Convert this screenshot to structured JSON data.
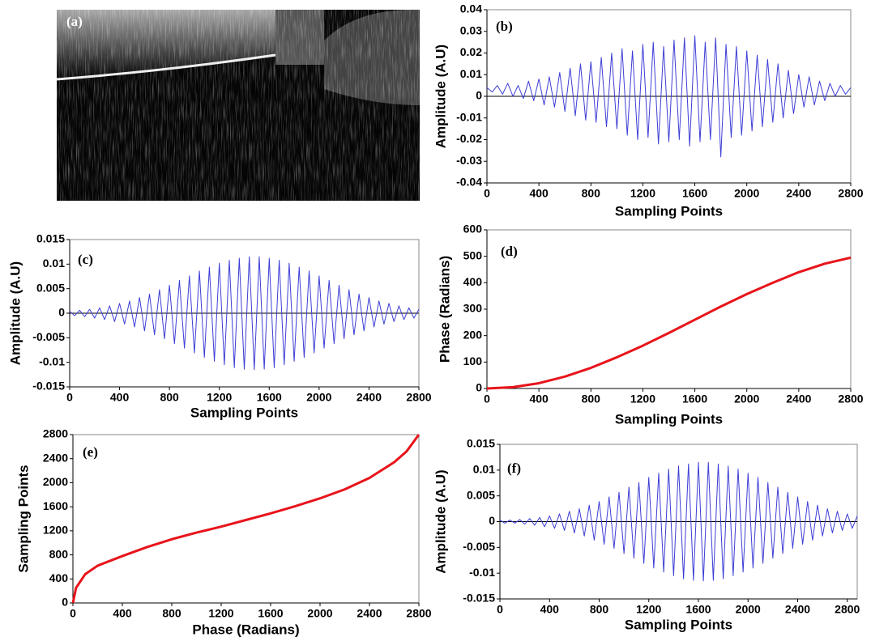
{
  "chart_data": [
    {
      "type": "image",
      "panel_label": "(a)"
    },
    {
      "type": "line",
      "panel_label": "(b)",
      "x_label": "Sampling Points",
      "y_label": "Amplitude (A.U)",
      "xlim": [
        0,
        2800
      ],
      "ylim": [
        -0.04,
        0.04
      ],
      "xticks": [
        0,
        400,
        800,
        1200,
        1600,
        2000,
        2400,
        2800
      ],
      "yticks": [
        -0.04,
        -0.03,
        -0.02,
        -0.01,
        0,
        0.01,
        0.02,
        0.03,
        0.04
      ],
      "zero_line": true,
      "series": [
        {
          "color": "#3d3dd6",
          "x": [
            0,
            40,
            80,
            120,
            160,
            200,
            240,
            280,
            320,
            360,
            400,
            440,
            480,
            520,
            560,
            600,
            640,
            680,
            720,
            760,
            800,
            840,
            880,
            920,
            960,
            1000,
            1040,
            1080,
            1120,
            1160,
            1200,
            1240,
            1280,
            1320,
            1360,
            1400,
            1440,
            1480,
            1520,
            1560,
            1600,
            1640,
            1680,
            1720,
            1760,
            1800,
            1840,
            1880,
            1920,
            1960,
            2000,
            2040,
            2080,
            2120,
            2160,
            2200,
            2240,
            2280,
            2320,
            2360,
            2400,
            2440,
            2480,
            2520,
            2560,
            2600,
            2640,
            2680,
            2720,
            2760,
            2800
          ],
          "values": [
            0.004,
            0.002,
            0.005,
            0.001,
            0.006,
            0,
            0.005,
            -0.001,
            0.007,
            -0.002,
            0.008,
            -0.004,
            0.009,
            -0.005,
            0.011,
            -0.007,
            0.013,
            -0.009,
            0.015,
            -0.011,
            0.016,
            -0.012,
            0.018,
            -0.014,
            0.02,
            -0.015,
            0.022,
            -0.018,
            0.021,
            -0.02,
            0.024,
            -0.019,
            0.025,
            -0.022,
            0.023,
            -0.021,
            0.026,
            -0.02,
            0.027,
            -0.023,
            0.028,
            -0.021,
            0.025,
            -0.02,
            0.027,
            -0.028,
            0.024,
            -0.019,
            0.023,
            -0.018,
            0.021,
            -0.016,
            0.019,
            -0.014,
            0.017,
            -0.012,
            0.015,
            -0.01,
            0.012,
            -0.008,
            0.01,
            -0.005,
            0.009,
            -0.004,
            0.007,
            -0.002,
            0.006,
            0,
            0.005,
            0.001,
            0.004
          ]
        }
      ]
    },
    {
      "type": "line",
      "panel_label": "(c)",
      "x_label": "Sampling Points",
      "y_label": "Amplitude (A.U)",
      "xlim": [
        0,
        2800
      ],
      "ylim": [
        -0.015,
        0.015
      ],
      "xticks": [
        0,
        400,
        800,
        1200,
        1600,
        2000,
        2400,
        2800
      ],
      "yticks": [
        -0.015,
        -0.01,
        -0.005,
        0,
        0.005,
        0.01,
        0.015
      ],
      "zero_line": true,
      "series": [
        {
          "color": "#3d3dd6",
          "x": [
            0,
            40,
            80,
            120,
            160,
            200,
            240,
            280,
            320,
            360,
            400,
            440,
            480,
            520,
            560,
            600,
            640,
            680,
            720,
            760,
            800,
            840,
            880,
            920,
            960,
            1000,
            1040,
            1080,
            1120,
            1160,
            1200,
            1240,
            1280,
            1320,
            1360,
            1400,
            1440,
            1480,
            1520,
            1560,
            1600,
            1640,
            1680,
            1720,
            1760,
            1800,
            1840,
            1880,
            1920,
            1960,
            2000,
            2040,
            2080,
            2120,
            2160,
            2200,
            2240,
            2280,
            2320,
            2360,
            2400,
            2440,
            2480,
            2520,
            2560,
            2600,
            2640,
            2680,
            2720,
            2760,
            2800
          ],
          "values": [
            0.0004,
            -0.0005,
            0.0006,
            -0.0007,
            0.0008,
            -0.001,
            0.0011,
            -0.0013,
            0.0015,
            -0.0017,
            0.002,
            -0.0022,
            0.0025,
            -0.0028,
            0.0032,
            -0.0036,
            0.0039,
            -0.0044,
            0.0048,
            -0.0052,
            0.0057,
            -0.0062,
            0.0067,
            -0.0071,
            0.0076,
            -0.0081,
            0.0086,
            -0.009,
            0.0094,
            -0.0098,
            0.0102,
            -0.0105,
            0.0108,
            -0.0111,
            0.0112,
            -0.0114,
            0.0115,
            -0.0115,
            0.0115,
            -0.0114,
            0.0112,
            -0.0111,
            0.0108,
            -0.0105,
            0.0102,
            -0.0098,
            0.0094,
            -0.009,
            0.0086,
            -0.0081,
            0.0076,
            -0.0071,
            0.0067,
            -0.0062,
            0.0057,
            -0.0052,
            0.0048,
            -0.0044,
            0.0039,
            -0.0036,
            0.0032,
            -0.0028,
            0.0025,
            -0.0022,
            0.002,
            -0.0017,
            0.0015,
            -0.0013,
            0.0011,
            -0.001,
            0.0008
          ]
        }
      ]
    },
    {
      "type": "line",
      "panel_label": "(d)",
      "x_label": "Sampling Points",
      "y_label": "Phase (Radians)",
      "xlim": [
        0,
        2800
      ],
      "ylim": [
        0,
        600
      ],
      "xticks": [
        0,
        400,
        800,
        1200,
        1600,
        2000,
        2400,
        2800
      ],
      "yticks": [
        0,
        100,
        200,
        300,
        400,
        500,
        600
      ],
      "zero_line": false,
      "series": [
        {
          "color": "#e8141b",
          "x": [
            0,
            200,
            400,
            600,
            800,
            1000,
            1200,
            1400,
            1600,
            1800,
            2000,
            2200,
            2400,
            2600,
            2800
          ],
          "values": [
            0,
            5,
            20,
            45,
            78,
            118,
            162,
            210,
            260,
            310,
            357,
            400,
            440,
            472,
            495
          ]
        }
      ]
    },
    {
      "type": "line",
      "panel_label": "(e)",
      "x_label": "Phase (Radians)",
      "y_label": "Sampling Points",
      "xlim": [
        0,
        2800
      ],
      "ylim": [
        0,
        2800
      ],
      "xticks": [
        0,
        400,
        800,
        1200,
        1600,
        2000,
        2400,
        2800
      ],
      "yticks": [
        0,
        400,
        800,
        1200,
        1600,
        2000,
        2400,
        2800
      ],
      "zero_line": false,
      "series": [
        {
          "color": "#e8141b",
          "x": [
            0,
            25,
            100,
            200,
            400,
            600,
            800,
            1000,
            1200,
            1400,
            1600,
            1800,
            2000,
            2200,
            2400,
            2600,
            2700,
            2800
          ],
          "values": [
            0,
            250,
            480,
            620,
            780,
            930,
            1060,
            1170,
            1270,
            1380,
            1490,
            1610,
            1740,
            1890,
            2080,
            2340,
            2520,
            2800
          ]
        }
      ]
    },
    {
      "type": "line",
      "panel_label": "(f)",
      "x_label": "Sampling Points",
      "y_label": "Amplitude (A.U)",
      "xlim": [
        0,
        2880
      ],
      "ylim": [
        -0.015,
        0.015
      ],
      "xticks": [
        0,
        400,
        800,
        1200,
        1600,
        2000,
        2400,
        2800
      ],
      "yticks": [
        -0.015,
        -0.01,
        -0.005,
        0,
        0.005,
        0.01,
        0.015
      ],
      "zero_line": true,
      "series": [
        {
          "color": "#3d3dd6",
          "x": [
            0,
            40,
            80,
            120,
            160,
            200,
            240,
            280,
            320,
            360,
            400,
            440,
            480,
            520,
            560,
            600,
            640,
            680,
            720,
            760,
            800,
            840,
            880,
            920,
            960,
            1000,
            1040,
            1080,
            1120,
            1160,
            1200,
            1240,
            1280,
            1320,
            1360,
            1400,
            1440,
            1480,
            1520,
            1560,
            1600,
            1640,
            1680,
            1720,
            1760,
            1800,
            1840,
            1880,
            1920,
            1960,
            2000,
            2040,
            2080,
            2120,
            2160,
            2200,
            2240,
            2280,
            2320,
            2360,
            2400,
            2440,
            2480,
            2520,
            2560,
            2600,
            2640,
            2680,
            2720,
            2760,
            2800,
            2840,
            2880
          ],
          "values": [
            0.0003,
            -0.0003,
            0.0003,
            -0.0003,
            0.0004,
            -0.0005,
            0.0006,
            -0.0007,
            0.0008,
            -0.001,
            0.0011,
            -0.0013,
            0.0015,
            -0.0017,
            0.002,
            -0.0022,
            0.0025,
            -0.0028,
            0.0032,
            -0.0036,
            0.0039,
            -0.0044,
            0.0048,
            -0.0052,
            0.0057,
            -0.0062,
            0.0067,
            -0.0071,
            0.0076,
            -0.0081,
            0.0086,
            -0.009,
            0.0094,
            -0.0098,
            0.0102,
            -0.0105,
            0.0108,
            -0.0111,
            0.0112,
            -0.0114,
            0.0115,
            -0.0115,
            0.0115,
            -0.0114,
            0.0112,
            -0.0111,
            0.0108,
            -0.0105,
            0.0102,
            -0.0098,
            0.0094,
            -0.009,
            0.0086,
            -0.0081,
            0.0076,
            -0.0071,
            0.0067,
            -0.0062,
            0.0057,
            -0.0052,
            0.0048,
            -0.0044,
            0.0039,
            -0.0036,
            0.0032,
            -0.0028,
            0.0025,
            -0.0022,
            0.002,
            -0.0017,
            0.0015,
            -0.0013,
            0.0011
          ]
        }
      ]
    }
  ]
}
